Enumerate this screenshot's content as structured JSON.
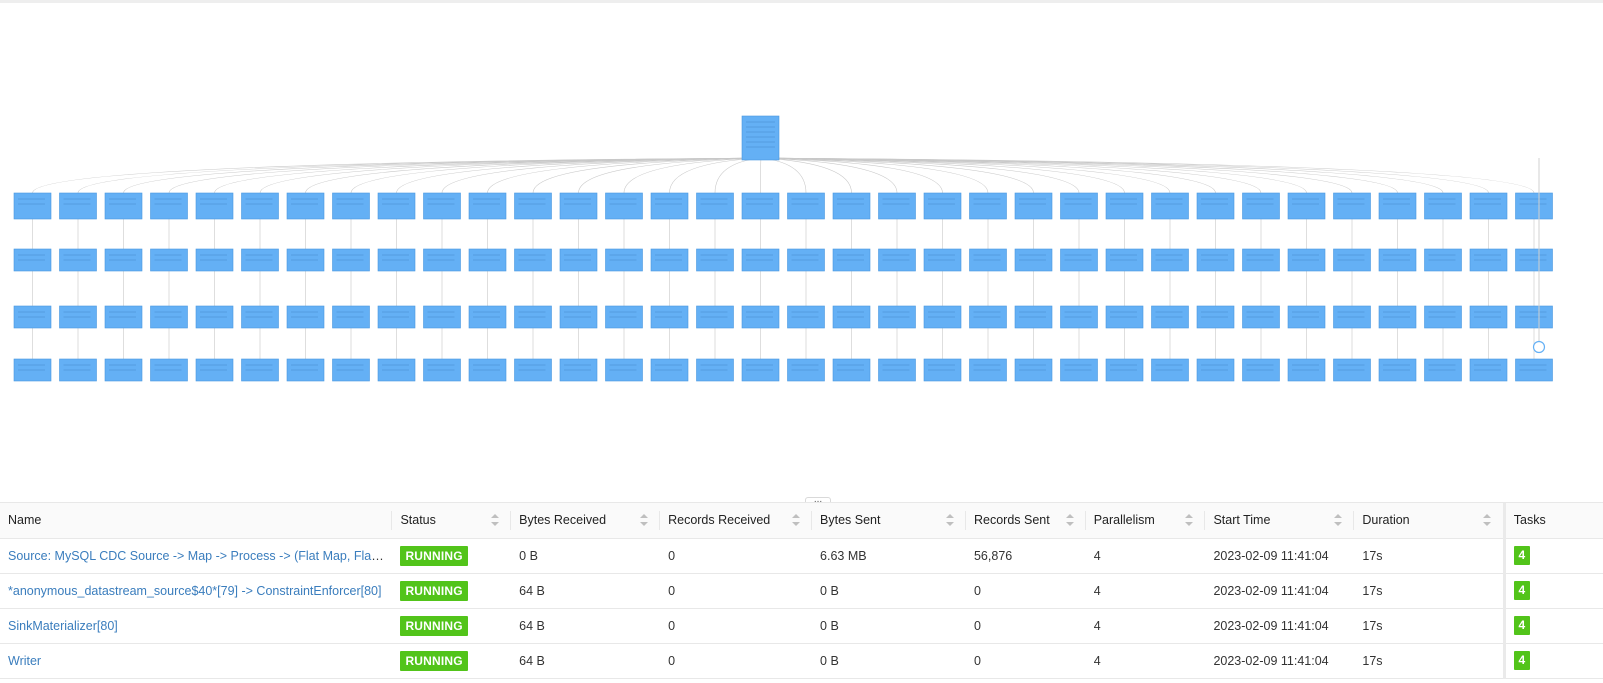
{
  "table": {
    "columns": [
      "Name",
      "Status",
      "Bytes Received",
      "Records Received",
      "Bytes Sent",
      "Records Sent",
      "Parallelism",
      "Start Time",
      "Duration",
      "Tasks"
    ],
    "rows": [
      {
        "name": "Source: MySQL CDC Source -> Map -> Process -> (Flat Map, Flat Map -> Sink)",
        "status": "RUNNING",
        "bytes_received": "0 B",
        "records_received": "0",
        "bytes_sent": "6.63 MB",
        "records_sent": "56,876",
        "parallelism": "4",
        "start_time": "2023-02-09 11:41:04",
        "duration": "17s",
        "tasks": "4"
      },
      {
        "name": "*anonymous_datastream_source$40*[79] -> ConstraintEnforcer[80]",
        "status": "RUNNING",
        "bytes_received": "64 B",
        "records_received": "0",
        "bytes_sent": "0 B",
        "records_sent": "0",
        "parallelism": "4",
        "start_time": "2023-02-09 11:41:04",
        "duration": "17s",
        "tasks": "4"
      },
      {
        "name": "SinkMaterializer[80]",
        "status": "RUNNING",
        "bytes_received": "64 B",
        "records_received": "0",
        "bytes_sent": "0 B",
        "records_sent": "0",
        "parallelism": "4",
        "start_time": "2023-02-09 11:41:04",
        "duration": "17s",
        "tasks": "4"
      },
      {
        "name": "Writer",
        "status": "RUNNING",
        "bytes_received": "64 B",
        "records_received": "0",
        "bytes_sent": "0 B",
        "records_sent": "0",
        "parallelism": "4",
        "start_time": "2023-02-09 11:41:04",
        "duration": "17s",
        "tasks": "4"
      }
    ]
  },
  "resize_handle": "...",
  "colors": {
    "node": "#64b0f5",
    "running": "#52c41a",
    "link": "#3a7dbd"
  }
}
